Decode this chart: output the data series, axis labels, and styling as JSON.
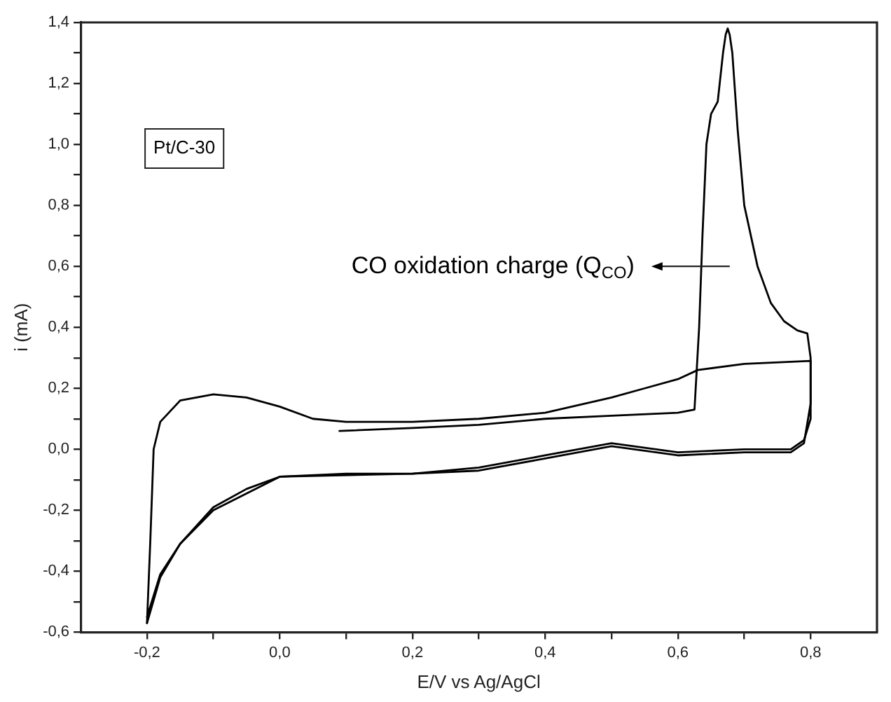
{
  "chart_data": {
    "type": "line",
    "xlabel": "E/V vs Ag/AgCl",
    "ylabel": "i (mA)",
    "annotations": [
      "Pt/C-30",
      "CO oxidation charge (Q$_{CO}$)"
    ],
    "series": [
      {
        "color": "#000000",
        "x": [
          0.09,
          0.2,
          0.3,
          0.4,
          0.5,
          0.6,
          0.625,
          0.632,
          0.637,
          0.643,
          0.65,
          0.66,
          0.668,
          0.672,
          0.675,
          0.678,
          0.682,
          0.69,
          0.7,
          0.72,
          0.74,
          0.76,
          0.78,
          0.795,
          0.8,
          0.8,
          0.79,
          0.77,
          0.7,
          0.6,
          0.5,
          0.4,
          0.3,
          0.2,
          0.1,
          0.0,
          -0.05,
          -0.1,
          -0.15,
          -0.18,
          -0.2
        ],
        "values": [
          0.06,
          0.07,
          0.08,
          0.1,
          0.11,
          0.12,
          0.13,
          0.4,
          0.7,
          1.0,
          1.1,
          1.14,
          1.3,
          1.36,
          1.38,
          1.36,
          1.3,
          1.05,
          0.8,
          0.6,
          0.48,
          0.42,
          0.39,
          0.38,
          0.3,
          0.1,
          0.03,
          0.0,
          0.0,
          -0.01,
          0.02,
          -0.02,
          -0.06,
          -0.08,
          -0.08,
          -0.09,
          -0.13,
          -0.19,
          -0.31,
          -0.42,
          -0.57
        ]
      },
      {
        "color": "#000000",
        "x": [
          -0.2,
          -0.195,
          -0.19,
          -0.18,
          -0.15,
          -0.1,
          -0.05,
          0.0,
          0.05,
          0.1,
          0.2,
          0.3,
          0.4,
          0.5,
          0.55,
          0.6,
          0.63,
          0.7,
          0.8,
          0.8,
          0.79,
          0.77,
          0.7,
          0.6,
          0.5,
          0.4,
          0.3,
          0.2,
          0.0,
          -0.1,
          -0.15,
          -0.18,
          -0.2
        ],
        "values": [
          -0.57,
          -0.3,
          0.0,
          0.09,
          0.16,
          0.18,
          0.17,
          0.14,
          0.1,
          0.09,
          0.09,
          0.1,
          0.12,
          0.17,
          0.2,
          0.23,
          0.26,
          0.28,
          0.29,
          0.15,
          0.02,
          -0.01,
          -0.01,
          -0.02,
          0.01,
          -0.03,
          -0.07,
          -0.08,
          -0.09,
          -0.2,
          -0.31,
          -0.41,
          -0.55
        ]
      }
    ],
    "xlim": [
      -0.3,
      0.9
    ],
    "xticks": [
      {
        "value": -0.2,
        "label": "-0,2"
      },
      {
        "value": -0.1,
        "label": null
      },
      {
        "value": 0,
        "label": "0,0"
      },
      {
        "value": 0.1,
        "label": null
      },
      {
        "value": 0.2,
        "label": "0,2"
      },
      {
        "value": 0.3,
        "label": null
      },
      {
        "value": 0.4,
        "label": "0,4"
      },
      {
        "value": 0.5,
        "label": null
      },
      {
        "value": 0.6,
        "label": "0,6"
      },
      {
        "value": 0.7,
        "label": null
      },
      {
        "value": 0.8,
        "label": "0,8"
      }
    ],
    "ylim": [
      -0.6,
      1.4
    ],
    "yticks": [
      {
        "value": -0.6,
        "label": "-0,6"
      },
      {
        "value": -0.5,
        "label": null
      },
      {
        "value": -0.4,
        "label": "-0,4"
      },
      {
        "value": -0.3,
        "label": null
      },
      {
        "value": -0.2,
        "label": "-0,2"
      },
      {
        "value": -0.1,
        "label": null
      },
      {
        "value": 0,
        "label": "0,0"
      },
      {
        "value": 0.1,
        "label": null
      },
      {
        "value": 0.2,
        "label": "0,2"
      },
      {
        "value": 0.3,
        "label": null
      },
      {
        "value": 0.4,
        "label": "0,4"
      },
      {
        "value": 0.5,
        "label": null
      },
      {
        "value": 0.6,
        "label": "0,6"
      },
      {
        "value": 0.7,
        "label": null
      },
      {
        "value": 0.8,
        "label": "0,8"
      },
      {
        "value": 0.9,
        "label": null
      },
      {
        "value": 1.0,
        "label": "1,0"
      },
      {
        "value": 1.1,
        "label": null
      },
      {
        "value": 1.2,
        "label": "1,2"
      },
      {
        "value": 1.3,
        "label": null
      },
      {
        "value": 1.4,
        "label": "1,4"
      }
    ],
    "grid": false,
    "legend": false,
    "marker": "none",
    "line_style": "solid"
  }
}
